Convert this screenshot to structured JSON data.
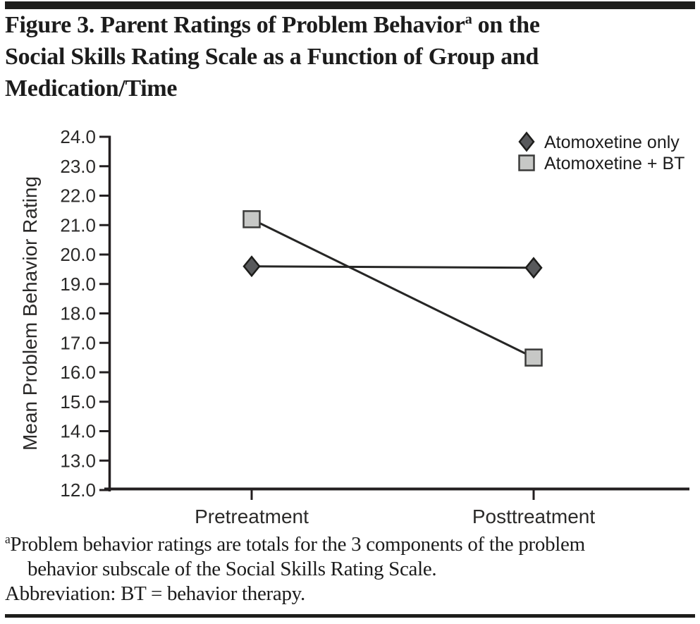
{
  "page": {
    "rule_color": "#1d1d1b",
    "background": "#ffffff"
  },
  "title": {
    "line1_pre": "Figure 3. Parent Ratings of Problem Behavior",
    "line1_sup": "a",
    "line1_post": " on the",
    "line2": "Social Skills Rating Scale as a Function of Group and",
    "line3": "Medication/Time"
  },
  "chart_data": {
    "type": "line",
    "categories": [
      "Pretreatment",
      "Posttreatment"
    ],
    "series": [
      {
        "name": "Atomoxetine only",
        "values": [
          19.6,
          19.55
        ],
        "marker": "diamond",
        "marker_fill": "#58595b",
        "marker_stroke": "#1d1d1b"
      },
      {
        "name": "Atomoxetine + BT",
        "values": [
          21.2,
          16.5
        ],
        "marker": "square",
        "marker_fill": "#c7c8c6",
        "marker_stroke": "#3b3b3a"
      }
    ],
    "title": "",
    "xlabel": "",
    "ylabel": "Mean Problem Behavior Rating",
    "ylim": [
      12.0,
      24.0
    ],
    "ytick_step": 1.0,
    "ytick_decimals": 1,
    "line_color": "#262625",
    "axis_color": "#231f20",
    "grid": false,
    "legend_position": "top-right"
  },
  "footnote": {
    "line1_sup": "a",
    "line1_text": "Problem behavior ratings are totals for the 3 components of the problem",
    "line2_text": "behavior subscale of the Social Skills Rating Scale.",
    "line3_text": "Abbreviation: BT = behavior therapy."
  }
}
